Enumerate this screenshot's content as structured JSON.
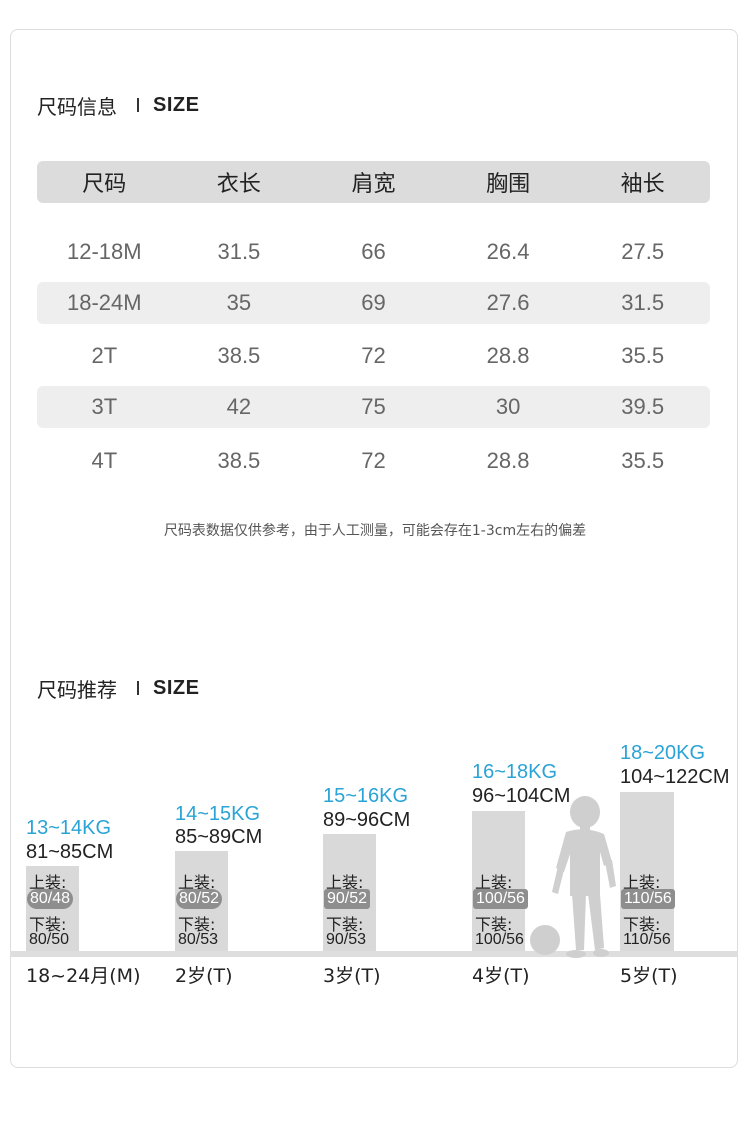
{
  "size_info": {
    "title_cn": "尺码信息",
    "title_en": "SIZE",
    "headers": [
      "尺码",
      "衣长",
      "肩宽",
      "胸围",
      "袖长"
    ],
    "rows": [
      [
        "12-18M",
        "31.5",
        "66",
        "26.4",
        "27.5"
      ],
      [
        "18-24M",
        "35",
        "69",
        "27.6",
        "31.5"
      ],
      [
        "2T",
        "38.5",
        "72",
        "28.8",
        "35.5"
      ],
      [
        "3T",
        "42",
        "75",
        "30",
        "39.5"
      ],
      [
        "4T",
        "38.5",
        "72",
        "28.8",
        "35.5"
      ]
    ],
    "note": "尺码表数据仅供参考，由于人工测量，可能会存在1-3cm左右的偏差"
  },
  "size_rec": {
    "title_cn": "尺码推荐",
    "title_en": "SIZE",
    "top_label": "上装:",
    "bottom_label": "下装:",
    "items": [
      {
        "weight": "13~14KG",
        "height": "81~85CM",
        "top": "80/48",
        "bottom": "80/50",
        "age": "18~24月(M)"
      },
      {
        "weight": "14~15KG",
        "height": "85~89CM",
        "top": "80/52",
        "bottom": "80/53",
        "age": "2岁(T)"
      },
      {
        "weight": "15~16KG",
        "height": "89~96CM",
        "top": "90/52",
        "bottom": "90/53",
        "age": "3岁(T)"
      },
      {
        "weight": "16~18KG",
        "height": "96~104CM",
        "top": "100/56",
        "bottom": "100/56",
        "age": "4岁(T)"
      },
      {
        "weight": "18~20KG",
        "height": "104~122CM",
        "top": "110/56",
        "bottom": "110/56",
        "age": "5岁(T)"
      }
    ]
  },
  "colors": {
    "accent_blue": "#2aa3d6",
    "header_gray": "#dcdcdc",
    "row_gray": "#eeeeee"
  },
  "icons": {
    "illustration": "child-with-ball-silhouette"
  }
}
